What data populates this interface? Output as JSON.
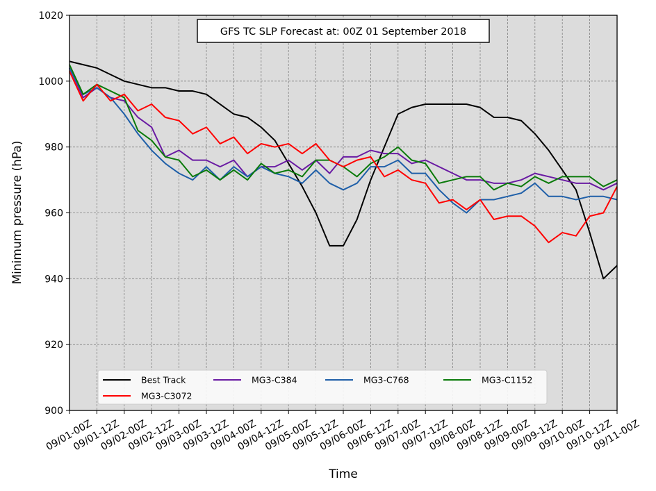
{
  "chart_data": {
    "type": "line",
    "title": "GFS TC SLP Forecast at: 00Z 01 September 2018",
    "xlabel": "Time",
    "ylabel": "Minimum pressure (hPa)",
    "ylim": [
      900,
      1020
    ],
    "yticks": [
      900,
      920,
      940,
      960,
      980,
      1000,
      1020
    ],
    "x_ticks": [
      "09/01-00Z",
      "09/01-12Z",
      "09/02-00Z",
      "09/02-12Z",
      "09/03-00Z",
      "09/03-12Z",
      "09/04-00Z",
      "09/04-12Z",
      "09/05-00Z",
      "09/05-12Z",
      "09/06-00Z",
      "09/06-12Z",
      "09/07-00Z",
      "09/07-12Z",
      "09/08-00Z",
      "09/08-12Z",
      "09/09-00Z",
      "09/09-12Z",
      "09/10-00Z",
      "09/10-12Z",
      "09/11-00Z"
    ],
    "x_step_hours": 6,
    "grid": true,
    "legend_position": "lower-center",
    "colors": {
      "plot_background": "#dcdcdc",
      "grid": "#808080"
    },
    "series": [
      {
        "name": "Best Track",
        "color": "#000000",
        "values": [
          1006,
          1005,
          1004,
          1002,
          1000,
          999,
          998,
          998,
          997,
          997,
          996,
          993,
          990,
          989,
          986,
          982,
          975,
          968,
          960,
          950,
          950,
          958,
          970,
          980,
          990,
          992,
          993,
          993,
          993,
          993,
          992,
          989,
          989,
          988,
          984,
          979,
          973,
          967,
          954,
          940,
          944
        ]
      },
      {
        "name": "MG3-C384",
        "color": "#6a1ba3",
        "values": [
          1004,
          995,
          998,
          995,
          994,
          989,
          986,
          977,
          979,
          976,
          976,
          974,
          976,
          971,
          974,
          974,
          976,
          973,
          976,
          972,
          977,
          977,
          979,
          978,
          978,
          975,
          976,
          974,
          972,
          970,
          970,
          969,
          969,
          970,
          972,
          971,
          970,
          969,
          969,
          967,
          969
        ]
      },
      {
        "name": "MG3-C768",
        "color": "#1f5fa8",
        "values": [
          1004,
          996,
          998,
          995,
          990,
          984,
          979,
          975,
          972,
          970,
          974,
          970,
          974,
          971,
          974,
          972,
          971,
          969,
          973,
          969,
          967,
          969,
          974,
          974,
          976,
          972,
          972,
          967,
          963,
          960,
          964,
          964,
          965,
          966,
          969,
          965,
          965,
          964,
          965,
          965,
          964
        ]
      },
      {
        "name": "MG3-C1152",
        "color": "#0a7a0a",
        "values": [
          1005,
          996,
          999,
          997,
          995,
          985,
          982,
          977,
          976,
          971,
          973,
          970,
          973,
          970,
          975,
          972,
          973,
          971,
          976,
          976,
          974,
          971,
          975,
          977,
          980,
          976,
          975,
          969,
          970,
          971,
          971,
          967,
          969,
          968,
          971,
          969,
          971,
          971,
          971,
          968,
          970
        ]
      },
      {
        "name": "MG3-C3072",
        "color": "#ff0000",
        "values": [
          1003,
          994,
          999,
          994,
          996,
          991,
          993,
          989,
          988,
          984,
          986,
          981,
          983,
          978,
          981,
          980,
          981,
          978,
          981,
          976,
          974,
          976,
          977,
          971,
          973,
          970,
          969,
          963,
          964,
          961,
          964,
          958,
          959,
          959,
          956,
          951,
          954,
          953,
          959,
          960,
          968
        ]
      }
    ]
  }
}
